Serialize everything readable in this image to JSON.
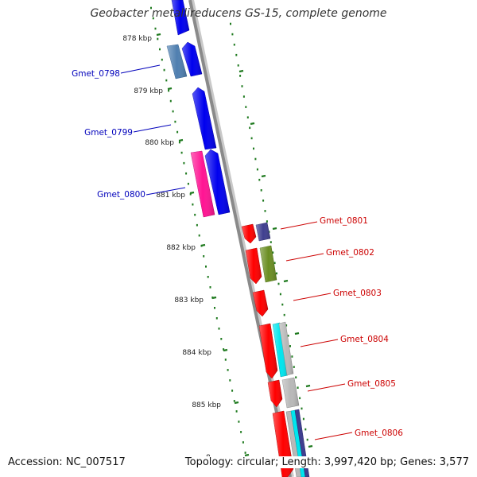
{
  "title": "Geobacter metallireducens GS-15, complete genome",
  "footer": {
    "accession": "Accession: NC_007517",
    "summary": "Topology: circular; Length: 3,997,420 bp; Genes: 3,577"
  },
  "ruler": {
    "ticks": [
      "878 kbp",
      "879 kbp",
      "880 kbp",
      "881 kbp",
      "882 kbp",
      "883 kbp",
      "884 kbp",
      "885 kbp",
      "8"
    ]
  },
  "colors": {
    "backbone": "#8a8a8a",
    "ruler_dots": "#1f7a1f",
    "left_label": "#0000bb",
    "right_label": "#cc0000"
  },
  "genes_left": [
    {
      "label": "Gmet_0798",
      "color": "#0000ee"
    },
    {
      "label": "Gmet_0799",
      "color": "#0000ee"
    },
    {
      "label": "Gmet_0800",
      "color": "#0000ee"
    }
  ],
  "genes_right": [
    {
      "label": "Gmet_0801",
      "color": "#ff0000"
    },
    {
      "label": "Gmet_0802",
      "color": "#ff0000"
    },
    {
      "label": "Gmet_0803",
      "color": "#ff0000"
    },
    {
      "label": "Gmet_0804",
      "color": "#ff0000"
    },
    {
      "label": "Gmet_0805",
      "color": "#ff0000"
    },
    {
      "label": "Gmet_0806",
      "color": "#ff0000"
    }
  ],
  "feature_colors": {
    "steelblue": "#4f7fb0",
    "magenta": "#ff1493",
    "slateblue": "#3f3f8f",
    "olive": "#6b8e23",
    "cyan": "#00e5ee",
    "silver": "#b8b8b8"
  }
}
